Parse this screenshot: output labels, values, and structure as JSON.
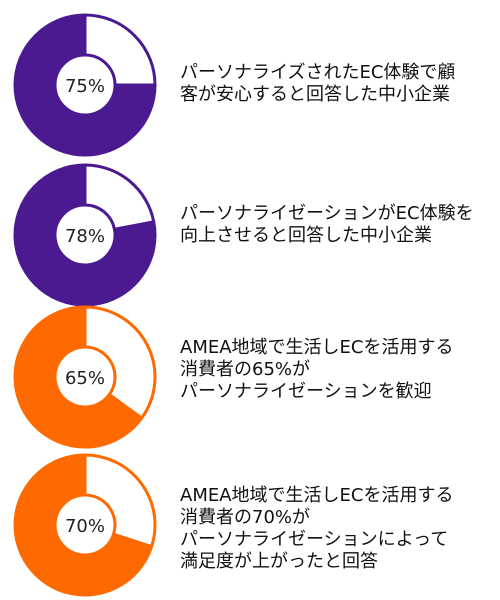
{
  "chart_data": [
    {
      "type": "pie",
      "value": 75,
      "label": "75%",
      "color": "#4b1a91",
      "caption_lines": [
        "パーソナライズされたEC体験で顧",
        "客が安心すると回答した中小企業"
      ]
    },
    {
      "type": "pie",
      "value": 78,
      "label": "78%",
      "color": "#4b1a91",
      "caption_lines": [
        "パーソナライゼーションがEC体験を",
        "向上させると回答した中小企業"
      ]
    },
    {
      "type": "pie",
      "value": 65,
      "label": "65%",
      "color": "#ff6a00",
      "caption_lines": [
        "AMEA地域で生活しECを活用する",
        "消費者の65%が",
        "パーソナライゼーションを歓迎"
      ]
    },
    {
      "type": "pie",
      "value": 70,
      "label": "70%",
      "color": "#ff6a00",
      "caption_lines": [
        "AMEA地域で生活しECを活用する",
        "消費者の70%が",
        "パーソナライゼーションによって",
        "満足度が上がったと回答"
      ]
    }
  ]
}
